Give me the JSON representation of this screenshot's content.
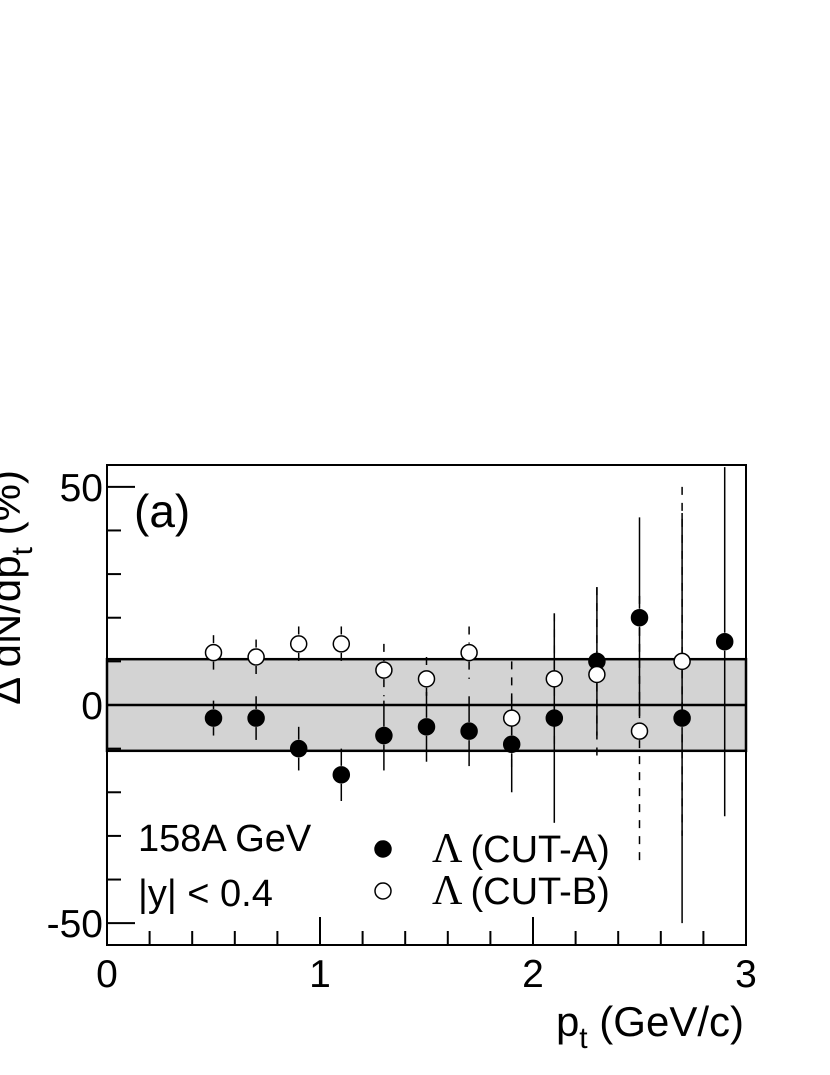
{
  "chart_data": {
    "type": "scatter",
    "panel_label": "(a)",
    "xlabel": {
      "main": "p",
      "sub": "t",
      "unit": " (GeV/c)"
    },
    "ylabel": {
      "main": "Δ dN/dp",
      "sub": "t",
      "unit": " (%)"
    },
    "xlim": [
      0,
      3
    ],
    "ylim": [
      -55,
      55
    ],
    "x_ticks": [
      {
        "value": 0,
        "label": "0"
      },
      {
        "value": 1,
        "label": "1"
      },
      {
        "value": 2,
        "label": "2"
      },
      {
        "value": 3,
        "label": "3"
      }
    ],
    "y_ticks": [
      {
        "value": -50,
        "label": "-50"
      },
      {
        "value": 0,
        "label": "0"
      },
      {
        "value": 50,
        "label": "50"
      }
    ],
    "band": {
      "low": -10.5,
      "high": 10.5
    },
    "reference_line": 0,
    "annotations": [
      "158A GeV",
      "|y| < 0.4"
    ],
    "series": [
      {
        "name": "(CUT-A)",
        "symbol": "Λ",
        "marker": "filled-circle",
        "error_style": "solid",
        "x": [
          0.5,
          0.7,
          0.9,
          1.1,
          1.3,
          1.5,
          1.7,
          1.9,
          2.1,
          2.3,
          2.5,
          2.7,
          2.9
        ],
        "y": [
          -3,
          -3,
          -10,
          -16,
          -7,
          -5,
          -6,
          -9,
          -3,
          10,
          20,
          -3,
          14.5
        ],
        "err": [
          4,
          5,
          5,
          6,
          8,
          8,
          8,
          11,
          24,
          17,
          23,
          47,
          40
        ]
      },
      {
        "name": "(CUT-B)",
        "symbol": "Λ",
        "marker": "open-circle",
        "error_style": "dashed",
        "x": [
          0.5,
          0.7,
          0.9,
          1.1,
          1.3,
          1.5,
          1.7,
          1.9,
          2.1,
          2.3,
          2.5,
          2.7
        ],
        "y": [
          12,
          11,
          14,
          14,
          8,
          6,
          12,
          -3,
          6,
          7,
          -6,
          10
        ],
        "err": [
          4,
          4,
          4,
          4,
          6,
          5,
          6,
          13,
          15,
          20,
          31,
          40
        ]
      }
    ]
  }
}
